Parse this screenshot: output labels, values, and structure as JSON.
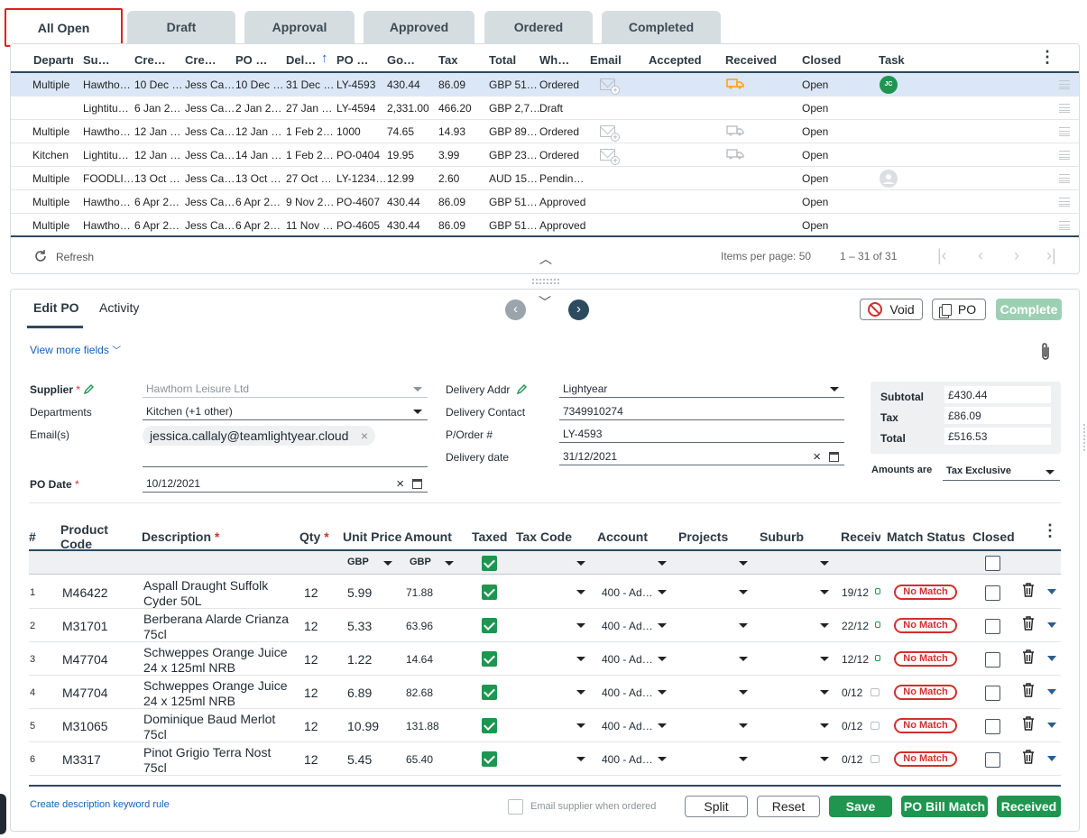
{
  "tabs": [
    "All Open",
    "Draft",
    "Approval",
    "Approved",
    "Ordered",
    "Completed"
  ],
  "grid": {
    "headers": [
      "Departm",
      "Su…",
      "Cre…",
      "Cre…",
      "PO …",
      "Del…",
      "PO …",
      "Go…",
      "Tax",
      "Total",
      "Wh…",
      "Email",
      "Accepted",
      "Received",
      "Closed",
      "Task"
    ],
    "rows": [
      {
        "dept": "Multiple (",
        "sup": "Hawtho…",
        "cre1": "10 Dec …",
        "cre2": "Jess Ca…",
        "po": "10 Dec …",
        "del": "31 Dec …",
        "pono": "LY-4593",
        "goods": "430.44",
        "tax": "86.09",
        "total": "GBP 51…",
        "wh": "Ordered",
        "closed": "Open",
        "task": "JC"
      },
      {
        "dept": "",
        "sup": "Lightitu…",
        "cre1": "6 Jan 2…",
        "cre2": "Jess Ca…",
        "po": "2 Jan 2…",
        "del": "27 Jan …",
        "pono": "LY-4594",
        "goods": "2,331.00",
        "tax": "466.20",
        "total": "GBP 2,7…",
        "wh": "Draft",
        "closed": "Open",
        "task": ""
      },
      {
        "dept": "Multiple (",
        "sup": "Hawtho…",
        "cre1": "12 Jan …",
        "cre2": "Jess Ca…",
        "po": "12 Jan …",
        "del": "1 Feb 2…",
        "pono": "1000",
        "goods": "74.65",
        "tax": "14.93",
        "total": "GBP 89…",
        "wh": "Ordered",
        "closed": "Open",
        "task": ""
      },
      {
        "dept": "Kitchen",
        "sup": "Lightitu…",
        "cre1": "12 Jan …",
        "cre2": "Jess Ca…",
        "po": "14 Jan …",
        "del": "1 Feb 2…",
        "pono": "PO-0404",
        "goods": "19.95",
        "tax": "3.99",
        "total": "GBP 23…",
        "wh": "Ordered",
        "closed": "Open",
        "task": ""
      },
      {
        "dept": "Multiple (",
        "sup": "FOODLI…",
        "cre1": "13 Oct …",
        "cre2": "Jess Ca…",
        "po": "13 Oct …",
        "del": "27 Oct …",
        "pono": "LY-1234…",
        "goods": "12.99",
        "tax": "2.60",
        "total": "AUD 15…",
        "wh": "Pendin…",
        "closed": "Open",
        "task": ""
      },
      {
        "dept": "Multiple (",
        "sup": "Hawtho…",
        "cre1": "6 Apr 2…",
        "cre2": "Jess Ca…",
        "po": "6 Apr 2…",
        "del": "9 Nov 2…",
        "pono": "PO-4607",
        "goods": "430.44",
        "tax": "86.09",
        "total": "GBP 51…",
        "wh": "Approved",
        "closed": "Open",
        "task": ""
      },
      {
        "dept": "Multiple (",
        "sup": "Hawtho…",
        "cre1": "6 Apr 2…",
        "cre2": "Jess Ca…",
        "po": "6 Apr 2…",
        "del": "11 Nov …",
        "pono": "PO-4605",
        "goods": "430.44",
        "tax": "86.09",
        "total": "GBP 51…",
        "wh": "Approved",
        "closed": "Open",
        "task": ""
      }
    ],
    "refresh": "Refresh",
    "items_per_page": "Items per page: 50",
    "range": "1 – 31 of 31"
  },
  "editor": {
    "tab_edit": "Edit PO",
    "tab_activity": "Activity",
    "void": "Void",
    "po": "PO",
    "complete": "Complete",
    "view_more": "View more fields",
    "supplier_label": "Supplier",
    "supplier": "Hawthorn Leisure Ltd",
    "departments_label": "Departments",
    "departments": "Kitchen (+1 other)",
    "emails_label": "Email(s)",
    "email": "jessica.callaly@teamlightyear.cloud",
    "po_date_label": "PO Date",
    "po_date": "10/12/2021",
    "delivery_addr_label": "Delivery Addr",
    "delivery_addr": "Lightyear",
    "delivery_contact_label": "Delivery Contact",
    "delivery_contact": "7349910274",
    "porder_label": "P/Order #",
    "porder": "LY-4593",
    "delivery_date_label": "Delivery date",
    "delivery_date": "31/12/2021",
    "subtotal_label": "Subtotal",
    "subtotal": "£430.44",
    "tax_label": "Tax",
    "tax": "£86.09",
    "total_label": "Total",
    "total": "£516.53",
    "amounts_label": "Amounts are",
    "amounts": "Tax Exclusive"
  },
  "lines": {
    "headers": {
      "num": "#",
      "code": "Product Code",
      "desc": "Description",
      "qty": "Qty",
      "unit": "Unit Price",
      "amount": "Amount",
      "taxed": "Taxed",
      "taxcode": "Tax Code",
      "account": "Account",
      "projects": "Projects",
      "suburb": "Suburb",
      "received": "Receiv",
      "match": "Match Status",
      "closed": "Closed"
    },
    "currency": "GBP",
    "rows": [
      {
        "n": "1",
        "code": "M46422",
        "d1": "Aspall Draught Suffolk",
        "d2": "Cyder 50L",
        "qty": "12",
        "unit": "5.99",
        "amt": "71.88",
        "acct": "400 - Ad…",
        "rec": "19/12",
        "match": "No Match"
      },
      {
        "n": "2",
        "code": "M31701",
        "d1": "Berberana Alarde Crianza",
        "d2": "75cl",
        "qty": "12",
        "unit": "5.33",
        "amt": "63.96",
        "acct": "400 - Ad…",
        "rec": "22/12",
        "match": "No Match"
      },
      {
        "n": "3",
        "code": "M47704",
        "d1": "Schweppes Orange Juice",
        "d2": "24 x 125ml NRB",
        "qty": "12",
        "unit": "1.22",
        "amt": "14.64",
        "acct": "400 - Ad…",
        "rec": "12/12",
        "match": "No Match"
      },
      {
        "n": "4",
        "code": "M47704",
        "d1": "Schweppes Orange Juice",
        "d2": "24 x 125ml NRB",
        "qty": "12",
        "unit": "6.89",
        "amt": "82.68",
        "acct": "400 - Ad…",
        "rec": "0/12",
        "match": "No Match"
      },
      {
        "n": "5",
        "code": "M31065",
        "d1": "Dominique Baud Merlot",
        "d2": "75cl",
        "qty": "12",
        "unit": "10.99",
        "amt": "131.88",
        "acct": "400 - Ad…",
        "rec": "0/12",
        "match": "No Match"
      },
      {
        "n": "6",
        "code": "M3317",
        "d1": "Pinot Grigio Terra Nost",
        "d2": "75cl",
        "qty": "12",
        "unit": "5.45",
        "amt": "65.40",
        "acct": "400 - Ad…",
        "rec": "0/12",
        "match": "No Match"
      }
    ]
  },
  "footer": {
    "keyword_rule": "Create description keyword rule",
    "email_supplier": "Email supplier when ordered",
    "split": "Split",
    "reset": "Reset",
    "save": "Save",
    "po_bill_match": "PO Bill Match",
    "received": "Received"
  },
  "colors": {
    "accent": "#1e9650",
    "header_rule": "#2e4a5e",
    "selected_row": "#dbe7f7",
    "error": "#d32f2f",
    "link": "#1a5fb4",
    "truck_active": "#f5a623"
  }
}
